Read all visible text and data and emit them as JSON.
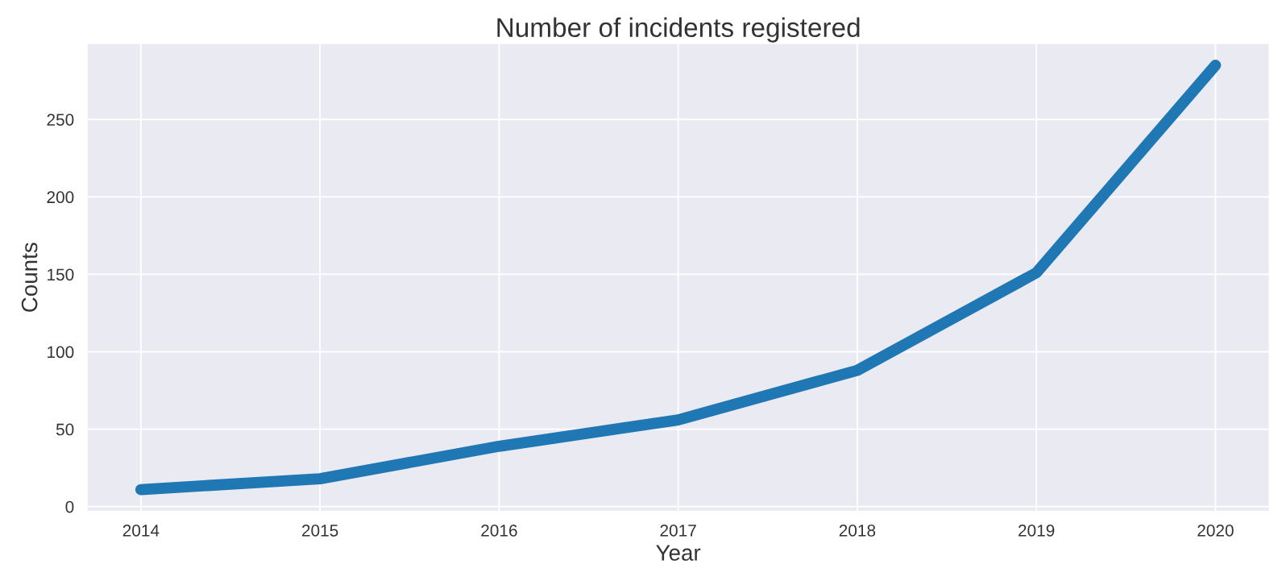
{
  "chart_data": {
    "type": "line",
    "title": "Number of incidents registered",
    "xlabel": "Year",
    "ylabel": "Counts",
    "x": [
      2014,
      2015,
      2016,
      2017,
      2018,
      2019,
      2020
    ],
    "series": [
      {
        "color": "#1f77b4",
        "values": [
          11,
          18,
          39,
          56,
          88,
          151,
          285
        ]
      }
    ],
    "xlim": [
      2013.7,
      2020.3
    ],
    "xticks": [
      2014,
      2015,
      2016,
      2017,
      2018,
      2019,
      2020
    ],
    "ylim": [
      -3,
      299
    ],
    "yticks": [
      0,
      50,
      100,
      150,
      200,
      250
    ],
    "grid": true,
    "line_style": "solid"
  }
}
